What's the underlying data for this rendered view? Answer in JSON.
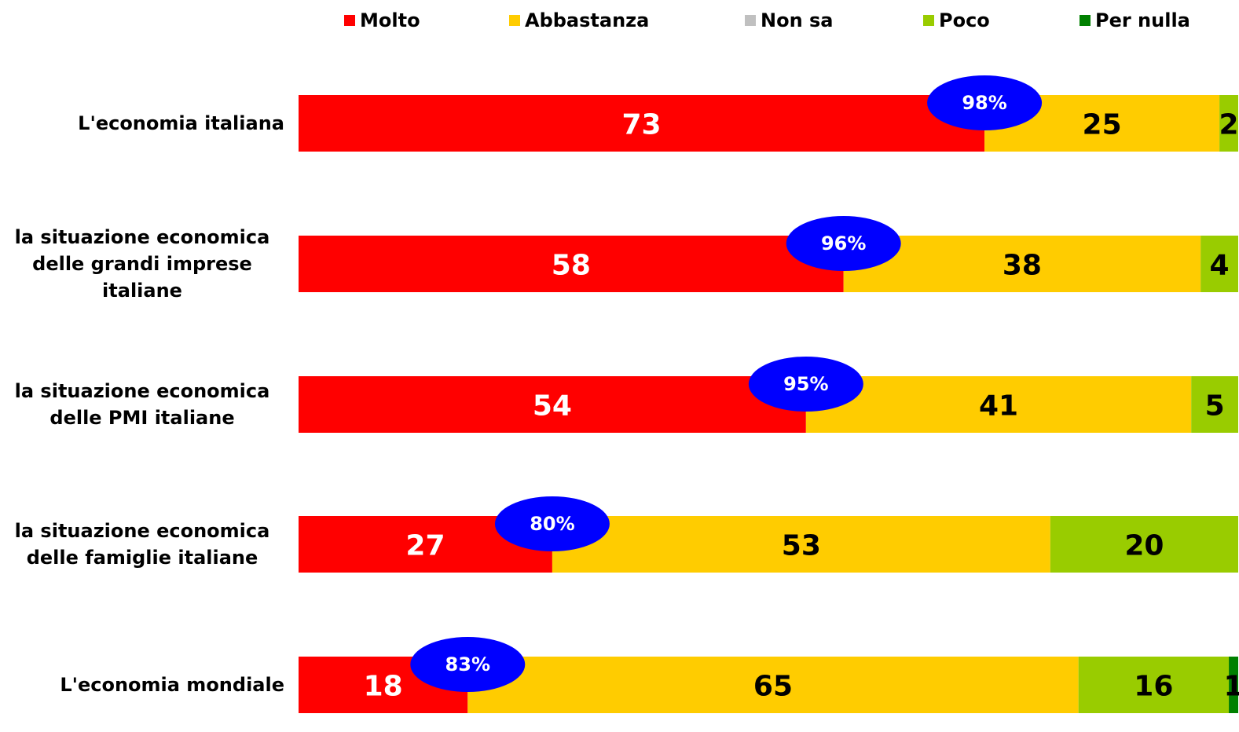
{
  "chart_data": {
    "type": "stacked-barh",
    "categories": [
      "L'economia italiana",
      "la situazione economica delle grandi imprese italiane",
      "la situazione economica delle PMI italiane",
      "la situazione economica delle famiglie italiane",
      "L'economia mondiale"
    ],
    "series": [
      {
        "name": "Molto",
        "color": "#ff0000",
        "label_color": "#ffffff",
        "values": [
          73,
          58,
          54,
          27,
          18
        ]
      },
      {
        "name": "Abbastanza",
        "color": "#ffcc00",
        "label_color": "#000000",
        "values": [
          25,
          38,
          41,
          53,
          65
        ]
      },
      {
        "name": "Non sa",
        "color": "#c0c0c0",
        "label_color": "#000000",
        "values": [
          0,
          0,
          0,
          0,
          0
        ]
      },
      {
        "name": "Poco",
        "color": "#99cc00",
        "label_color": "#000000",
        "values": [
          2,
          4,
          5,
          20,
          16
        ]
      },
      {
        "name": "Per nulla",
        "color": "#008000",
        "label_color": "#000000",
        "values": [
          0,
          0,
          0,
          0,
          1
        ]
      }
    ],
    "annotations": [
      {
        "value": 98,
        "label": "98%"
      },
      {
        "value": 96,
        "label": "96%"
      },
      {
        "value": 95,
        "label": "95%"
      },
      {
        "value": 80,
        "label": "80%"
      },
      {
        "value": 83,
        "label": "83%"
      }
    ],
    "annotation_color": "#0000ff",
    "xlim": [
      0,
      100
    ],
    "legend": "top"
  }
}
